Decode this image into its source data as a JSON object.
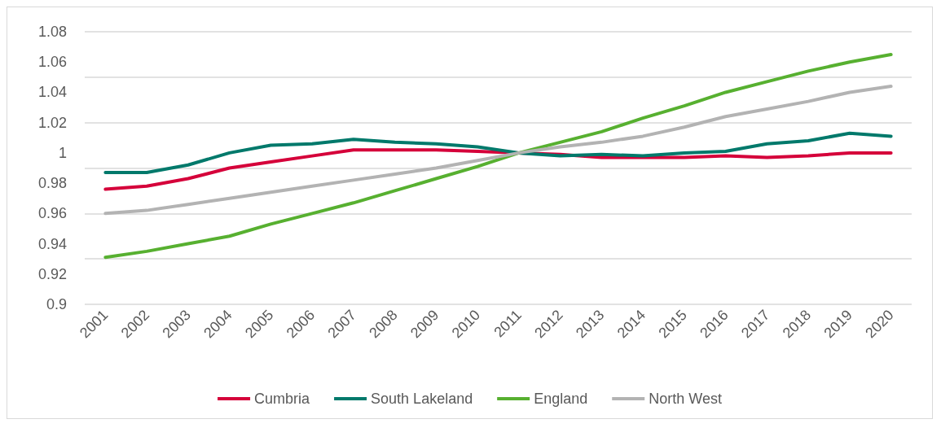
{
  "chart_data": {
    "type": "line",
    "categories": [
      "2001",
      "2002",
      "2003",
      "2004",
      "2005",
      "2006",
      "2007",
      "2008",
      "2009",
      "2010",
      "2011",
      "2012",
      "2013",
      "2014",
      "2015",
      "2016",
      "2017",
      "2018",
      "2019",
      "2020"
    ],
    "series": [
      {
        "name": "Cumbria",
        "color": "#d5003a",
        "values": [
          0.976,
          0.978,
          0.983,
          0.99,
          0.994,
          0.998,
          1.002,
          1.002,
          1.002,
          1.001,
          1.0,
          0.999,
          0.997,
          0.997,
          0.997,
          0.998,
          0.997,
          0.998,
          1.0,
          1.0
        ]
      },
      {
        "name": "South Lakeland",
        "color": "#00796b",
        "values": [
          0.987,
          0.987,
          0.992,
          1.0,
          1.005,
          1.006,
          1.009,
          1.007,
          1.006,
          1.004,
          1.0,
          0.998,
          0.999,
          0.998,
          1.0,
          1.001,
          1.006,
          1.008,
          1.013,
          1.011
        ]
      },
      {
        "name": "England",
        "color": "#57b030",
        "values": [
          0.931,
          0.935,
          0.94,
          0.945,
          0.953,
          0.96,
          0.967,
          0.975,
          0.983,
          0.991,
          1.0,
          1.007,
          1.014,
          1.023,
          1.031,
          1.04,
          1.047,
          1.054,
          1.06,
          1.065
        ]
      },
      {
        "name": "North West",
        "color": "#b3b3b3",
        "values": [
          0.96,
          0.962,
          0.966,
          0.97,
          0.974,
          0.978,
          0.982,
          0.986,
          0.99,
          0.995,
          1.0,
          1.004,
          1.007,
          1.011,
          1.017,
          1.024,
          1.029,
          1.034,
          1.04,
          1.044
        ]
      }
    ],
    "ylim": [
      0.9,
      1.08
    ],
    "yticks": [
      0.9,
      0.92,
      0.94,
      0.96,
      0.98,
      1,
      1.02,
      1.04,
      1.06,
      1.08
    ],
    "grid": "y",
    "legend": "bottom",
    "marker": "none",
    "line_style": "solid"
  }
}
